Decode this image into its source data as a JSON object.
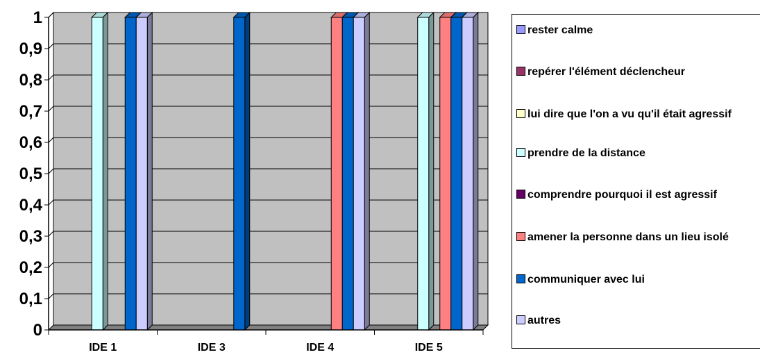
{
  "chart_data": {
    "type": "bar",
    "categories": [
      "IDE 1",
      "IDE 3",
      "IDE 4",
      "IDE 5"
    ],
    "ylim": [
      0,
      1
    ],
    "yticks": [
      "0",
      "0,1",
      "0,2",
      "0,3",
      "0,4",
      "0,5",
      "0,6",
      "0,7",
      "0,8",
      "0,9",
      "1"
    ],
    "grid": true,
    "legend_position": "right",
    "series": [
      {
        "name": "rester calme",
        "color": "#9999FF",
        "values": [
          0,
          0,
          0,
          0
        ]
      },
      {
        "name": "repérer l'élément déclencheur",
        "color": "#993366",
        "values": [
          0,
          0,
          0,
          0
        ]
      },
      {
        "name": "lui dire que l'on a vu qu'il était agressif",
        "color": "#FFFFCC",
        "values": [
          0,
          0,
          0,
          0
        ]
      },
      {
        "name": "prendre de la distance",
        "color": "#CCFFFF",
        "values": [
          1,
          0,
          0,
          1
        ]
      },
      {
        "name": "comprendre pourquoi il est agressif",
        "color": "#660066",
        "values": [
          0,
          0,
          0,
          0
        ]
      },
      {
        "name": "amener la personne dans un lieu isolé",
        "color": "#FF8080",
        "values": [
          0,
          0,
          1,
          1
        ]
      },
      {
        "name": "communiquer avec lui",
        "color": "#0066CC",
        "values": [
          1,
          1,
          1,
          1
        ]
      },
      {
        "name": "autres",
        "color": "#CCCCFF",
        "values": [
          1,
          0,
          1,
          1
        ]
      }
    ],
    "plot_area_color": "#C0C0C0"
  }
}
